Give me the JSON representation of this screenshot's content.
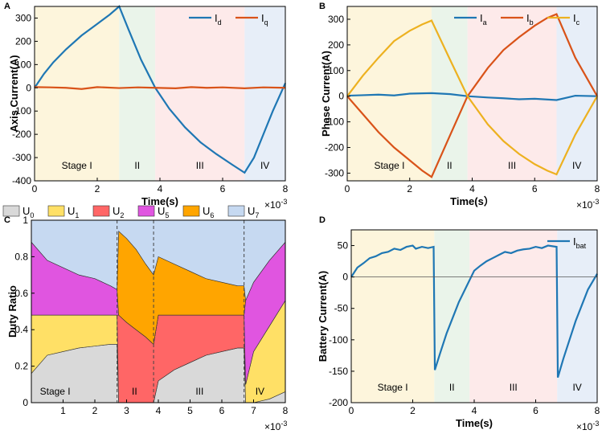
{
  "chart_data": [
    {
      "panel": "A",
      "type": "line",
      "xlabel": "Time(s)",
      "ylabel": "Axis Current(A)",
      "x_multiplier": "×10",
      "x_multiplier_exp": "-3",
      "xlim": [
        0,
        8
      ],
      "ylim": [
        -400,
        350
      ],
      "xticks": [
        0,
        2,
        4,
        6,
        8
      ],
      "yticks": [
        -400,
        -300,
        -200,
        -100,
        0,
        100,
        200,
        300
      ],
      "stages": [
        {
          "label": "Stage I",
          "x0": 0,
          "x1": 2.7,
          "color": "#fdf5dc"
        },
        {
          "label": "II",
          "x0": 2.7,
          "x1": 3.85,
          "color": "#eaf4ea"
        },
        {
          "label": "III",
          "x0": 3.85,
          "x1": 6.7,
          "color": "#fdeaea"
        },
        {
          "label": "IV",
          "x0": 6.7,
          "x1": 8,
          "color": "#e7eef8"
        }
      ],
      "series": [
        {
          "name": "I",
          "sub": "d",
          "color": "#1f77b4",
          "x": [
            0,
            0.3,
            0.6,
            1.0,
            1.5,
            2.0,
            2.4,
            2.7,
            3.0,
            3.4,
            3.85,
            4.3,
            4.8,
            5.3,
            5.8,
            6.3,
            6.7,
            7.0,
            7.3,
            7.6,
            8.0
          ],
          "y": [
            0,
            60,
            110,
            165,
            225,
            275,
            315,
            350,
            250,
            120,
            0,
            -90,
            -170,
            -235,
            -285,
            -330,
            -365,
            -300,
            -200,
            -100,
            20
          ]
        },
        {
          "name": "I",
          "sub": "q",
          "color": "#d95319",
          "x": [
            0,
            0.5,
            1.0,
            1.5,
            2.0,
            2.7,
            3.3,
            3.85,
            4.5,
            5.0,
            5.5,
            6.0,
            6.7,
            7.3,
            8.0
          ],
          "y": [
            3,
            2,
            0,
            -5,
            3,
            -1,
            2,
            0,
            -2,
            3,
            0,
            2,
            -2,
            2,
            0
          ]
        }
      ]
    },
    {
      "panel": "B",
      "type": "line",
      "xlabel": "Time(s）",
      "ylabel": "Phase Current(A)",
      "x_multiplier": "×10",
      "x_multiplier_exp": "-3",
      "xlim": [
        0,
        8
      ],
      "ylim": [
        -330,
        350
      ],
      "xticks": [
        0,
        2,
        4,
        6,
        8
      ],
      "yticks": [
        -300,
        -200,
        -100,
        0,
        100,
        200,
        300
      ],
      "stages": [
        {
          "label": "Stage I",
          "x0": 0,
          "x1": 2.7,
          "color": "#fdf5dc"
        },
        {
          "label": "II",
          "x0": 2.7,
          "x1": 3.85,
          "color": "#eaf4ea"
        },
        {
          "label": "III",
          "x0": 3.85,
          "x1": 6.7,
          "color": "#fdeaea"
        },
        {
          "label": "IV",
          "x0": 6.7,
          "x1": 8,
          "color": "#e7eef8"
        }
      ],
      "series": [
        {
          "name": "I",
          "sub": "a",
          "color": "#1f77b4",
          "x": [
            0,
            0.5,
            1.0,
            1.5,
            2.0,
            2.7,
            3.3,
            3.85,
            4.5,
            5.0,
            5.5,
            6.0,
            6.7,
            7.3,
            8.0
          ],
          "y": [
            2,
            4,
            6,
            3,
            10,
            12,
            8,
            0,
            -5,
            -8,
            -12,
            -10,
            -15,
            2,
            0
          ]
        },
        {
          "name": "I",
          "sub": "b",
          "color": "#d95319",
          "x": [
            0,
            0.5,
            1.0,
            1.5,
            2.0,
            2.4,
            2.7,
            3.3,
            3.85,
            4.5,
            5.0,
            5.5,
            6.0,
            6.4,
            6.7,
            7.3,
            8.0
          ],
          "y": [
            0,
            -70,
            -140,
            -200,
            -250,
            -290,
            -315,
            -150,
            0,
            110,
            180,
            230,
            275,
            305,
            320,
            150,
            0
          ]
        },
        {
          "name": "I",
          "sub": "c",
          "color": "#edb120",
          "x": [
            0,
            0.5,
            1.0,
            1.5,
            2.0,
            2.4,
            2.7,
            3.3,
            3.85,
            4.5,
            5.0,
            5.5,
            6.0,
            6.4,
            6.7,
            7.3,
            8.0
          ],
          "y": [
            0,
            80,
            150,
            215,
            255,
            280,
            295,
            140,
            0,
            -110,
            -175,
            -225,
            -265,
            -290,
            -305,
            -150,
            0
          ]
        }
      ]
    },
    {
      "panel": "C",
      "type": "area",
      "ylabel": "Duty Ratio",
      "x_multiplier": "×10",
      "x_multiplier_exp": "-3",
      "xlim": [
        0,
        8
      ],
      "ylim": [
        0,
        1
      ],
      "xticks": [
        1,
        2,
        3,
        4,
        5,
        6,
        7,
        8
      ],
      "yticks": [
        0,
        0.2,
        0.4,
        0.6,
        0.8,
        1
      ],
      "legend": [
        {
          "name": "U",
          "sub": "0",
          "color": "#d9d9d9"
        },
        {
          "name": "U",
          "sub": "1",
          "color": "#ffe066"
        },
        {
          "name": "U",
          "sub": "2",
          "color": "#ff6666"
        },
        {
          "name": "U",
          "sub": "5",
          "color": "#e055e0"
        },
        {
          "name": "U",
          "sub": "6",
          "color": "#ffa500"
        },
        {
          "name": "U",
          "sub": "7",
          "color": "#c6d9f1"
        }
      ],
      "stage_labels": [
        {
          "label": "Stage I",
          "x": 0.75
        },
        {
          "label": "II",
          "x": 3.25
        },
        {
          "label": "III",
          "x": 5.3
        },
        {
          "label": "IV",
          "x": 7.2
        }
      ],
      "dividers": [
        2.7,
        3.85,
        6.7
      ],
      "x": [
        0,
        0.5,
        1.0,
        1.5,
        2.0,
        2.5,
        2.7,
        2.75,
        3.0,
        3.3,
        3.6,
        3.85,
        4.0,
        4.5,
        5.0,
        5.5,
        6.0,
        6.5,
        6.7,
        6.75,
        7.0,
        7.5,
        8.0
      ],
      "layers": [
        {
          "name": "U0",
          "color": "#d9d9d9",
          "values": [
            0.16,
            0.26,
            0.28,
            0.3,
            0.31,
            0.32,
            0.32,
            0.0,
            0.0,
            0.0,
            0.0,
            0.0,
            0.12,
            0.18,
            0.22,
            0.26,
            0.28,
            0.3,
            0.3,
            0.0,
            0.0,
            0.02,
            0.06
          ]
        },
        {
          "name": "U1",
          "color": "#ffe066",
          "values": [
            0.32,
            0.22,
            0.2,
            0.18,
            0.17,
            0.16,
            0.16,
            0.0,
            0.0,
            0.0,
            0.0,
            0.0,
            0.0,
            0.0,
            0.0,
            0.0,
            0.0,
            0.0,
            0.0,
            0.1,
            0.28,
            0.4,
            0.5
          ]
        },
        {
          "name": "U2",
          "color": "#ff6666",
          "values": [
            0.0,
            0.0,
            0.0,
            0.0,
            0.0,
            0.0,
            0.0,
            0.48,
            0.44,
            0.4,
            0.36,
            0.32,
            0.36,
            0.3,
            0.26,
            0.22,
            0.2,
            0.18,
            0.18,
            0.0,
            0.0,
            0.0,
            0.0
          ]
        },
        {
          "name": "U5",
          "color": "#e055e0",
          "values": [
            0.4,
            0.3,
            0.26,
            0.22,
            0.2,
            0.16,
            0.14,
            0.0,
            0.0,
            0.0,
            0.0,
            0.0,
            0.0,
            0.0,
            0.0,
            0.0,
            0.0,
            0.0,
            0.0,
            0.46,
            0.38,
            0.36,
            0.32
          ]
        },
        {
          "name": "U6",
          "color": "#ffa500",
          "values": [
            0.0,
            0.0,
            0.0,
            0.0,
            0.0,
            0.0,
            0.0,
            0.46,
            0.46,
            0.44,
            0.4,
            0.38,
            0.32,
            0.28,
            0.24,
            0.2,
            0.18,
            0.16,
            0.16,
            0.0,
            0.0,
            0.0,
            0.0
          ]
        },
        {
          "name": "U7",
          "color": "#c6d9f1",
          "values": [
            0.12,
            0.22,
            0.26,
            0.3,
            0.32,
            0.36,
            0.38,
            0.06,
            0.1,
            0.16,
            0.24,
            0.3,
            0.2,
            0.24,
            0.28,
            0.32,
            0.34,
            0.36,
            0.36,
            0.44,
            0.34,
            0.22,
            0.12
          ]
        }
      ]
    },
    {
      "panel": "D",
      "type": "line",
      "xlabel": "Time(s)",
      "ylabel": "Battery Current(A)",
      "x_multiplier": "×10",
      "x_multiplier_exp": "-3",
      "xlim": [
        0,
        8
      ],
      "ylim": [
        -200,
        75
      ],
      "xticks": [
        0,
        2,
        4,
        6,
        8
      ],
      "yticks": [
        -200,
        -150,
        -100,
        -50,
        0,
        50
      ],
      "stages": [
        {
          "label": "Stage I",
          "x0": 0,
          "x1": 2.7,
          "color": "#fdf5dc"
        },
        {
          "label": "II",
          "x0": 2.7,
          "x1": 3.85,
          "color": "#eaf4ea"
        },
        {
          "label": "III",
          "x0": 3.85,
          "x1": 6.7,
          "color": "#fdeaea"
        },
        {
          "label": "IV",
          "x0": 6.7,
          "x1": 8,
          "color": "#e7eef8"
        }
      ],
      "series": [
        {
          "name": "I",
          "sub": "bat",
          "color": "#1f77b4",
          "x": [
            0,
            0.2,
            0.4,
            0.6,
            0.8,
            1.0,
            1.2,
            1.4,
            1.6,
            1.8,
            2.0,
            2.1,
            2.3,
            2.5,
            2.68,
            2.72,
            2.9,
            3.1,
            3.3,
            3.5,
            3.7,
            3.85,
            4.0,
            4.2,
            4.4,
            4.6,
            4.8,
            5.0,
            5.2,
            5.4,
            5.6,
            5.8,
            6.0,
            6.2,
            6.4,
            6.68,
            6.72,
            6.9,
            7.1,
            7.3,
            7.5,
            7.7,
            8.0
          ],
          "y": [
            0,
            15,
            22,
            30,
            33,
            38,
            40,
            45,
            43,
            48,
            50,
            45,
            48,
            46,
            48,
            -148,
            -120,
            -90,
            -65,
            -40,
            -20,
            -5,
            10,
            18,
            25,
            30,
            35,
            40,
            38,
            42,
            44,
            45,
            48,
            46,
            50,
            48,
            -160,
            -130,
            -100,
            -70,
            -45,
            -20,
            5
          ]
        },
        {
          "name": "zero",
          "sub": "",
          "color": "#555555",
          "x": [
            0,
            8
          ],
          "y": [
            0,
            0
          ]
        }
      ]
    }
  ]
}
